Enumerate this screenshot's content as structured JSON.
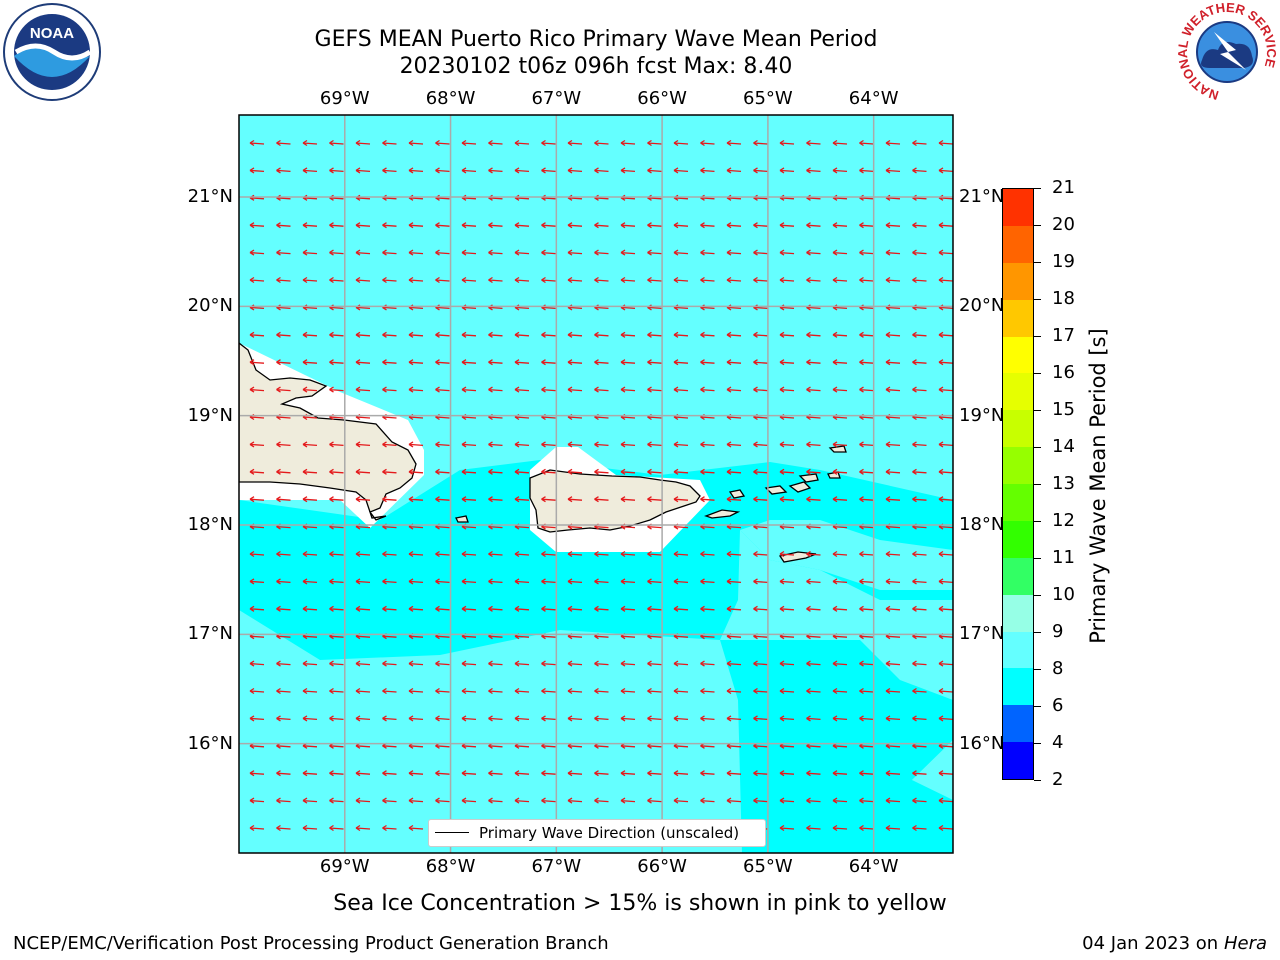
{
  "title": {
    "line1": "GEFS MEAN Puerto Rico Primary Wave Mean Period",
    "line2": "20230102 t06z 096h fcst   Max: 8.40"
  },
  "logos": {
    "left": "NOAA",
    "left_icon": "noaa-logo-icon",
    "right_ring_text": "NATIONAL WEATHER SERVICE",
    "right_icon": "nws-logo-icon"
  },
  "map": {
    "lon_labels": [
      "69°W",
      "68°W",
      "67°W",
      "66°W",
      "65°W",
      "64°W"
    ],
    "lat_labels": [
      "21°N",
      "20°N",
      "19°N",
      "18°N",
      "17°N",
      "16°N"
    ],
    "lon_values": [
      -69,
      -68,
      -67,
      -66,
      -65,
      -64
    ],
    "lat_values": [
      21,
      20,
      19,
      18,
      17,
      16
    ],
    "extent": {
      "lon_min": -70.0,
      "lon_max": -63.25,
      "lat_min": 15.0,
      "lat_max": 21.75
    },
    "land_color": "#efecdc",
    "arrow_color": "#e41a1c",
    "grid": true
  },
  "legend": {
    "label": "Primary Wave Direction (unscaled)"
  },
  "colorbar": {
    "label": "Primary Wave Mean Period [s]",
    "ticks": [
      2,
      4,
      6,
      8,
      9,
      10,
      11,
      12,
      13,
      14,
      15,
      16,
      17,
      18,
      19,
      20,
      21
    ],
    "colors": [
      "#0000ff",
      "#0064ff",
      "#00ffff",
      "#64ffff",
      "#96ffe6",
      "#32ff64",
      "#32ff00",
      "#64ff00",
      "#96ff00",
      "#c8ff00",
      "#e6ff00",
      "#ffff00",
      "#ffc800",
      "#ff9600",
      "#ff6400",
      "#ff3200",
      "#ff0000"
    ]
  },
  "field_colors": {
    "period_6_8": "#00ffff",
    "period_8_9": "#64ffff"
  },
  "note": "Sea Ice Concentration > 15% is shown in pink to yellow",
  "footer": {
    "left": "NCEP/EMC/Verification Post Processing Product Generation Branch",
    "date": "04 Jan 2023 on ",
    "machine": "Hera"
  }
}
